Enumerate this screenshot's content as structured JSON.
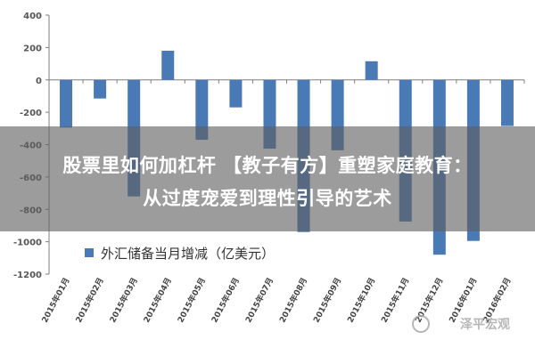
{
  "chart_data": {
    "type": "bar",
    "categories": [
      "2015年01月",
      "2015年02月",
      "2015年03月",
      "2015年04月",
      "2015年05月",
      "2015年06月",
      "2015年07月",
      "2015年08月",
      "2015年09月",
      "2015年10月",
      "2015年11月",
      "2015年12月",
      "2016年01月",
      "2016年02月"
    ],
    "series": [
      {
        "name": "外汇储备当月增减（亿美元）",
        "values": [
          -295,
          -115,
          -720,
          180,
          -370,
          -170,
          -425,
          -940,
          -435,
          115,
          -875,
          -1080,
          -995,
          -285
        ]
      }
    ],
    "yticks": [
      "400",
      "200",
      "0",
      "-200",
      "-400",
      "-600",
      "-800",
      "-1000",
      "-1200"
    ],
    "ylim": [
      -1200,
      400
    ],
    "grid": false,
    "legend_position": "bottom-left",
    "colors": {
      "bar": "#4a7ab5",
      "axis": "#7f7f7f"
    }
  },
  "overlay": {
    "title_line1": "股票里如何加杠杆 【教子有方】重塑家庭教育：",
    "title_line2": "从过度宠爱到理性引导的艺术"
  },
  "watermark": {
    "text": "泽平宏观"
  }
}
